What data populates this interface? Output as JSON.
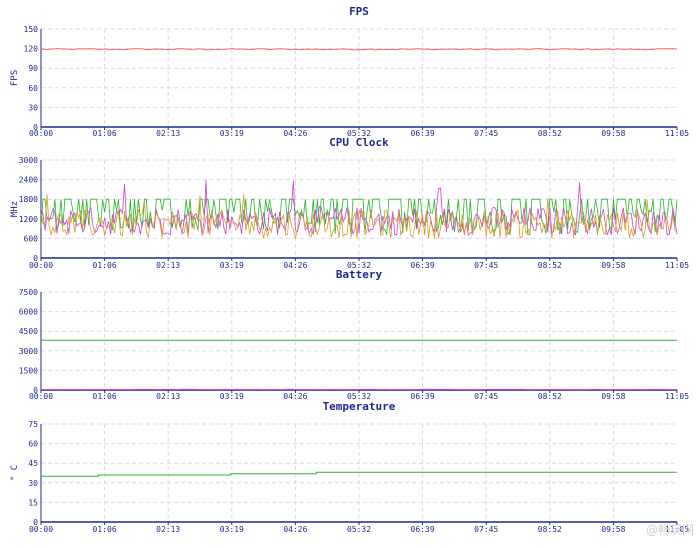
{
  "watermark": "@畅玩网",
  "colors": {
    "title": "#1f2a8f",
    "axis": "#1f2a8f",
    "grid": "#d9d9ea",
    "fps_line": "#f26a6a",
    "cpu_green": "#26b526",
    "cpu_magenta": "#cc44cc",
    "cpu_orange": "#d89b2b",
    "battery_green": "#2fb32f",
    "battery_magenta": "#cc44cc",
    "temperature_green": "#2fb32f"
  },
  "chart_data": [
    {
      "type": "line",
      "title": "FPS",
      "ylabel": "FPS",
      "xlabel": "",
      "ylim": [
        0,
        150
      ],
      "y_ticks": [
        "0",
        "30",
        "60",
        "90",
        "120",
        "150"
      ],
      "x_ticks": [
        "00:00",
        "01:06",
        "02:13",
        "03:19",
        "04:26",
        "05:32",
        "06:39",
        "07:45",
        "08:52",
        "09:58",
        "11:05"
      ],
      "grid": true,
      "series": [
        {
          "color_key": "fps_line",
          "x_range_minutes": [
            0,
            11.08
          ],
          "values_approx": 119,
          "noise": 1
        }
      ]
    },
    {
      "type": "line",
      "title": "CPU Clock",
      "ylabel": "MHz",
      "xlabel": "",
      "ylim": [
        0,
        3000
      ],
      "y_ticks": [
        "0",
        "600",
        "1200",
        "1800",
        "2400",
        "3000"
      ],
      "x_ticks": [
        "00:00",
        "01:06",
        "02:13",
        "03:19",
        "04:26",
        "05:32",
        "06:39",
        "07:45",
        "08:52",
        "09:58",
        "11:05"
      ],
      "grid": true,
      "series": [
        {
          "color_key": "cpu_green",
          "x_range_minutes": [
            0,
            11.08
          ],
          "values_approx": 1300,
          "range": [
            700,
            1800
          ]
        },
        {
          "color_key": "cpu_magenta",
          "x_range_minutes": [
            0,
            11.08
          ],
          "values_approx": 1250,
          "range": [
            700,
            2400
          ]
        },
        {
          "color_key": "cpu_orange",
          "x_range_minutes": [
            0,
            11.08
          ],
          "values_approx": 1150,
          "range": [
            600,
            2000
          ]
        }
      ]
    },
    {
      "type": "line",
      "title": "Battery",
      "ylabel": "",
      "xlabel": "",
      "ylim": [
        0,
        7500
      ],
      "y_ticks": [
        "0",
        "1500",
        "3000",
        "4500",
        "6000",
        "7500"
      ],
      "x_ticks": [
        "00:00",
        "01:06",
        "02:13",
        "03:19",
        "04:26",
        "05:32",
        "06:39",
        "07:45",
        "08:52",
        "09:58",
        "11:05"
      ],
      "grid": true,
      "series": [
        {
          "color_key": "battery_green",
          "x_range_minutes": [
            0,
            11.08
          ],
          "values_approx": 3800,
          "noise": 0
        },
        {
          "color_key": "battery_magenta",
          "x_range_minutes": [
            0,
            11.08
          ],
          "values_approx": 40,
          "noise": 10
        }
      ]
    },
    {
      "type": "line",
      "title": "Temperature",
      "ylabel": "° C",
      "xlabel": "",
      "ylim": [
        0,
        75
      ],
      "y_ticks": [
        "0",
        "15",
        "30",
        "45",
        "60",
        "75"
      ],
      "x_ticks": [
        "00:00",
        "01:06",
        "02:13",
        "03:19",
        "04:26",
        "05:32",
        "06:39",
        "07:45",
        "08:52",
        "09:58",
        "11:05"
      ],
      "grid": true,
      "series": [
        {
          "color_key": "temperature_green",
          "points_minutes": [
            [
              0,
              35
            ],
            [
              1.0,
              36
            ],
            [
              3.3,
              37
            ],
            [
              4.8,
              38
            ],
            [
              11.08,
              39
            ]
          ]
        }
      ]
    }
  ]
}
